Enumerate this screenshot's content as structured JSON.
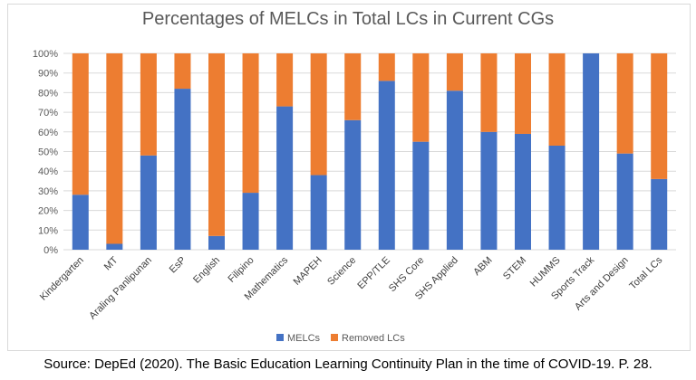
{
  "source": "Source: DepEd (2020). The Basic Education Learning Continuity Plan in the time of COVID-19. P. 28.",
  "chart_data": {
    "type": "bar",
    "stacked": true,
    "title": "Percentages of MELCs in Total LCs in Current CGs",
    "xlabel": "",
    "ylabel": "",
    "ylim": [
      0,
      100
    ],
    "yticks": [
      "0%",
      "10%",
      "20%",
      "30%",
      "40%",
      "50%",
      "60%",
      "70%",
      "80%",
      "90%",
      "100%"
    ],
    "grid": true,
    "legend_position": "bottom",
    "categories": [
      "Kindergarten",
      "MT",
      "Araling Panlipunan",
      "EsP",
      "English",
      "Filipino",
      "Mathematics",
      "MAPEH",
      "Science",
      "EPP/TLE",
      "SHS Core",
      "SHS Applied",
      "ABM",
      "STEM",
      "HUMMS",
      "Sports Track",
      "Arts and Design",
      "Total LCs"
    ],
    "series": [
      {
        "name": "MELCs",
        "color": "#4472c4",
        "values": [
          28,
          3,
          48,
          82,
          7,
          29,
          73,
          38,
          66,
          86,
          55,
          81,
          60,
          59,
          53,
          100,
          49,
          36
        ]
      },
      {
        "name": "Removed LCs",
        "color": "#ed7d31",
        "values": [
          72,
          97,
          52,
          18,
          93,
          71,
          27,
          62,
          34,
          14,
          45,
          19,
          40,
          41,
          47,
          0,
          51,
          64
        ]
      }
    ]
  }
}
